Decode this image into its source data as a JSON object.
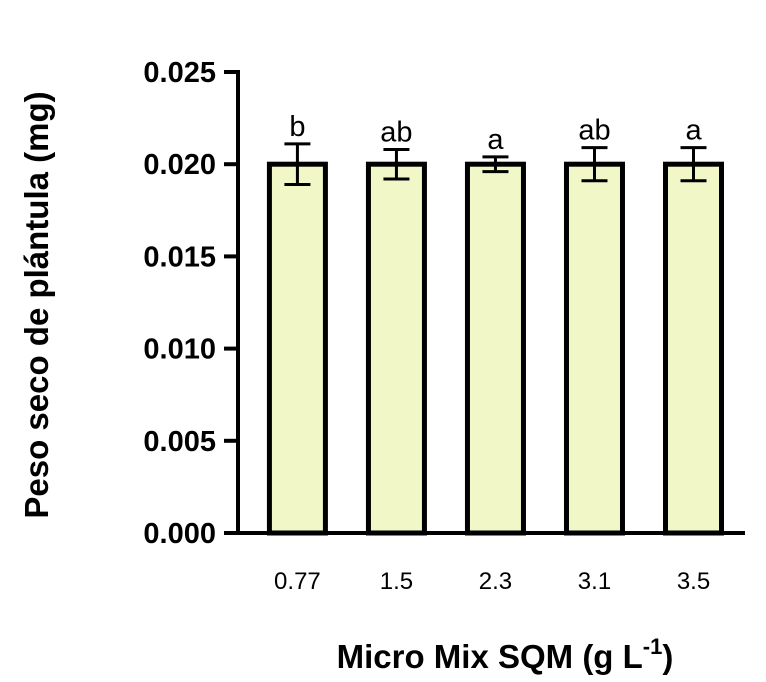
{
  "chart_data": {
    "type": "bar",
    "categories": [
      "0.77",
      "1.5",
      "2.3",
      "3.1",
      "3.5"
    ],
    "values": [
      0.02,
      0.02,
      0.02,
      0.02,
      0.02
    ],
    "error": [
      0.0011,
      0.0008,
      0.0004,
      0.0009,
      0.0009
    ],
    "significance_labels": [
      "b",
      "ab",
      "a",
      "ab",
      "a"
    ],
    "ylabel": "Peso seco de plántula (mg)",
    "xlabel_main": "Micro Mix SQM (g L",
    "xlabel_sup": "-1",
    "xlabel_close": ")",
    "ylim": [
      0,
      0.025
    ],
    "yticks": [
      "0.000",
      "0.005",
      "0.010",
      "0.015",
      "0.020",
      "0.025"
    ],
    "bar_color": "#F2F7C8",
    "grid": false,
    "legend": "none"
  }
}
